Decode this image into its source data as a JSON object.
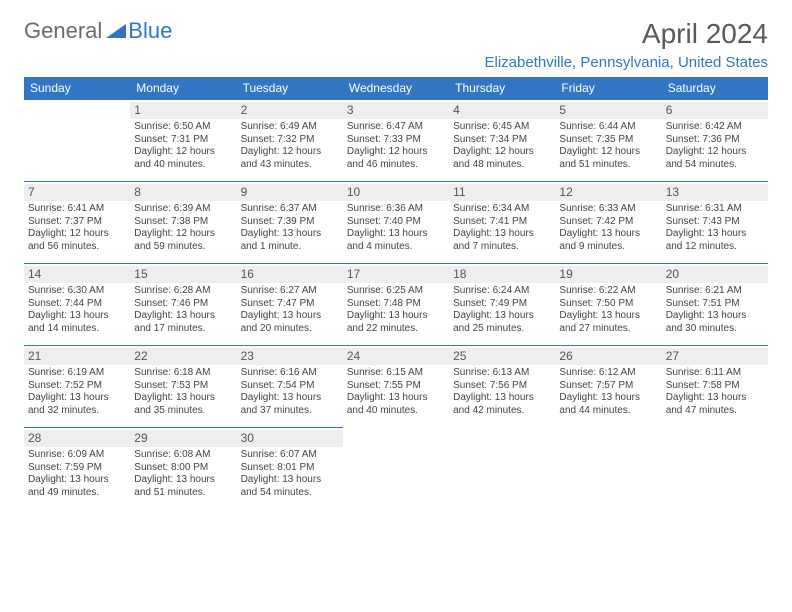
{
  "brand": {
    "part1": "General",
    "part2": "Blue"
  },
  "title": "April 2024",
  "location": "Elizabethville, Pennsylvania, United States",
  "colors": {
    "header_bg": "#3276c3",
    "header_fg": "#ffffff",
    "daynum_bg": "#eeeeee",
    "border": "#3276c3",
    "title_color": "#595959",
    "location_color": "#3276c3",
    "text_color": "#444444"
  },
  "typography": {
    "month_title_fontsize": 28,
    "location_fontsize": 15,
    "day_header_fontsize": 12,
    "daynum_fontsize": 12,
    "cell_fontsize": 10
  },
  "day_headers": [
    "Sunday",
    "Monday",
    "Tuesday",
    "Wednesday",
    "Thursday",
    "Friday",
    "Saturday"
  ],
  "weeks": [
    [
      {
        "empty": true
      },
      {
        "n": "1",
        "sunrise": "Sunrise: 6:50 AM",
        "sunset": "Sunset: 7:31 PM",
        "d1": "Daylight: 12 hours",
        "d2": "and 40 minutes."
      },
      {
        "n": "2",
        "sunrise": "Sunrise: 6:49 AM",
        "sunset": "Sunset: 7:32 PM",
        "d1": "Daylight: 12 hours",
        "d2": "and 43 minutes."
      },
      {
        "n": "3",
        "sunrise": "Sunrise: 6:47 AM",
        "sunset": "Sunset: 7:33 PM",
        "d1": "Daylight: 12 hours",
        "d2": "and 46 minutes."
      },
      {
        "n": "4",
        "sunrise": "Sunrise: 6:45 AM",
        "sunset": "Sunset: 7:34 PM",
        "d1": "Daylight: 12 hours",
        "d2": "and 48 minutes."
      },
      {
        "n": "5",
        "sunrise": "Sunrise: 6:44 AM",
        "sunset": "Sunset: 7:35 PM",
        "d1": "Daylight: 12 hours",
        "d2": "and 51 minutes."
      },
      {
        "n": "6",
        "sunrise": "Sunrise: 6:42 AM",
        "sunset": "Sunset: 7:36 PM",
        "d1": "Daylight: 12 hours",
        "d2": "and 54 minutes."
      }
    ],
    [
      {
        "n": "7",
        "sunrise": "Sunrise: 6:41 AM",
        "sunset": "Sunset: 7:37 PM",
        "d1": "Daylight: 12 hours",
        "d2": "and 56 minutes."
      },
      {
        "n": "8",
        "sunrise": "Sunrise: 6:39 AM",
        "sunset": "Sunset: 7:38 PM",
        "d1": "Daylight: 12 hours",
        "d2": "and 59 minutes."
      },
      {
        "n": "9",
        "sunrise": "Sunrise: 6:37 AM",
        "sunset": "Sunset: 7:39 PM",
        "d1": "Daylight: 13 hours",
        "d2": "and 1 minute."
      },
      {
        "n": "10",
        "sunrise": "Sunrise: 6:36 AM",
        "sunset": "Sunset: 7:40 PM",
        "d1": "Daylight: 13 hours",
        "d2": "and 4 minutes."
      },
      {
        "n": "11",
        "sunrise": "Sunrise: 6:34 AM",
        "sunset": "Sunset: 7:41 PM",
        "d1": "Daylight: 13 hours",
        "d2": "and 7 minutes."
      },
      {
        "n": "12",
        "sunrise": "Sunrise: 6:33 AM",
        "sunset": "Sunset: 7:42 PM",
        "d1": "Daylight: 13 hours",
        "d2": "and 9 minutes."
      },
      {
        "n": "13",
        "sunrise": "Sunrise: 6:31 AM",
        "sunset": "Sunset: 7:43 PM",
        "d1": "Daylight: 13 hours",
        "d2": "and 12 minutes."
      }
    ],
    [
      {
        "n": "14",
        "sunrise": "Sunrise: 6:30 AM",
        "sunset": "Sunset: 7:44 PM",
        "d1": "Daylight: 13 hours",
        "d2": "and 14 minutes."
      },
      {
        "n": "15",
        "sunrise": "Sunrise: 6:28 AM",
        "sunset": "Sunset: 7:46 PM",
        "d1": "Daylight: 13 hours",
        "d2": "and 17 minutes."
      },
      {
        "n": "16",
        "sunrise": "Sunrise: 6:27 AM",
        "sunset": "Sunset: 7:47 PM",
        "d1": "Daylight: 13 hours",
        "d2": "and 20 minutes."
      },
      {
        "n": "17",
        "sunrise": "Sunrise: 6:25 AM",
        "sunset": "Sunset: 7:48 PM",
        "d1": "Daylight: 13 hours",
        "d2": "and 22 minutes."
      },
      {
        "n": "18",
        "sunrise": "Sunrise: 6:24 AM",
        "sunset": "Sunset: 7:49 PM",
        "d1": "Daylight: 13 hours",
        "d2": "and 25 minutes."
      },
      {
        "n": "19",
        "sunrise": "Sunrise: 6:22 AM",
        "sunset": "Sunset: 7:50 PM",
        "d1": "Daylight: 13 hours",
        "d2": "and 27 minutes."
      },
      {
        "n": "20",
        "sunrise": "Sunrise: 6:21 AM",
        "sunset": "Sunset: 7:51 PM",
        "d1": "Daylight: 13 hours",
        "d2": "and 30 minutes."
      }
    ],
    [
      {
        "n": "21",
        "sunrise": "Sunrise: 6:19 AM",
        "sunset": "Sunset: 7:52 PM",
        "d1": "Daylight: 13 hours",
        "d2": "and 32 minutes."
      },
      {
        "n": "22",
        "sunrise": "Sunrise: 6:18 AM",
        "sunset": "Sunset: 7:53 PM",
        "d1": "Daylight: 13 hours",
        "d2": "and 35 minutes."
      },
      {
        "n": "23",
        "sunrise": "Sunrise: 6:16 AM",
        "sunset": "Sunset: 7:54 PM",
        "d1": "Daylight: 13 hours",
        "d2": "and 37 minutes."
      },
      {
        "n": "24",
        "sunrise": "Sunrise: 6:15 AM",
        "sunset": "Sunset: 7:55 PM",
        "d1": "Daylight: 13 hours",
        "d2": "and 40 minutes."
      },
      {
        "n": "25",
        "sunrise": "Sunrise: 6:13 AM",
        "sunset": "Sunset: 7:56 PM",
        "d1": "Daylight: 13 hours",
        "d2": "and 42 minutes."
      },
      {
        "n": "26",
        "sunrise": "Sunrise: 6:12 AM",
        "sunset": "Sunset: 7:57 PM",
        "d1": "Daylight: 13 hours",
        "d2": "and 44 minutes."
      },
      {
        "n": "27",
        "sunrise": "Sunrise: 6:11 AM",
        "sunset": "Sunset: 7:58 PM",
        "d1": "Daylight: 13 hours",
        "d2": "and 47 minutes."
      }
    ],
    [
      {
        "n": "28",
        "sunrise": "Sunrise: 6:09 AM",
        "sunset": "Sunset: 7:59 PM",
        "d1": "Daylight: 13 hours",
        "d2": "and 49 minutes."
      },
      {
        "n": "29",
        "sunrise": "Sunrise: 6:08 AM",
        "sunset": "Sunset: 8:00 PM",
        "d1": "Daylight: 13 hours",
        "d2": "and 51 minutes."
      },
      {
        "n": "30",
        "sunrise": "Sunrise: 6:07 AM",
        "sunset": "Sunset: 8:01 PM",
        "d1": "Daylight: 13 hours",
        "d2": "and 54 minutes."
      },
      {
        "empty": true
      },
      {
        "empty": true
      },
      {
        "empty": true
      },
      {
        "empty": true
      }
    ]
  ]
}
